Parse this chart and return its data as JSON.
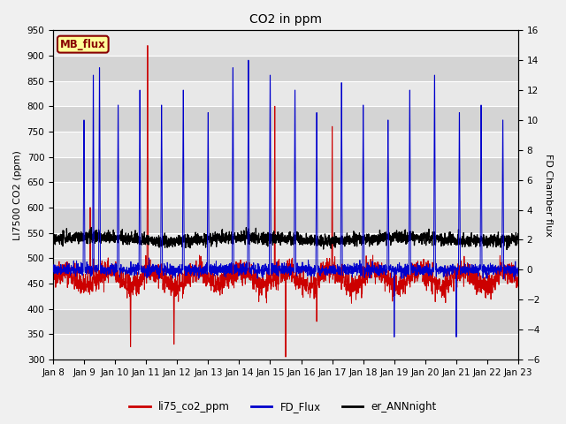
{
  "title": "CO2 in ppm",
  "ylabel_left": "LI7500 CO2 (ppm)",
  "ylabel_right": "FD Chamber flux",
  "ylim_left": [
    300,
    950
  ],
  "ylim_right": [
    -6,
    16
  ],
  "yticks_left": [
    300,
    350,
    400,
    450,
    500,
    550,
    600,
    650,
    700,
    750,
    800,
    850,
    900,
    950
  ],
  "yticks_right": [
    -6,
    -4,
    -2,
    0,
    2,
    4,
    6,
    8,
    10,
    12,
    14,
    16
  ],
  "xticklabels": [
    "Jan 8",
    "Jan 9",
    "Jan 10",
    "Jan 11",
    "Jan 12",
    "Jan 13",
    "Jan 14",
    "Jan 15",
    "Jan 16",
    "Jan 17",
    "Jan 18",
    "Jan 19",
    "Jan 20",
    "Jan 21",
    "Jan 22",
    "Jan 23"
  ],
  "line_colors": {
    "co2": "#cc0000",
    "flux": "#0000cc",
    "ann": "#000000"
  },
  "line_widths": {
    "co2": 0.7,
    "flux": 0.7,
    "ann": 0.9
  },
  "legend_labels": [
    "li75_co2_ppm",
    "FD_Flux",
    "er_ANNnight"
  ],
  "mb_flux_label": "MB_flux",
  "mb_flux_color_bg": "#ffff99",
  "mb_flux_color_border": "#880000",
  "mb_flux_color_text": "#880000",
  "band_colors": [
    "#e8e8e8",
    "#d0d0d0"
  ],
  "grid_color": "#ffffff",
  "n_points": 2400,
  "seed": 42
}
